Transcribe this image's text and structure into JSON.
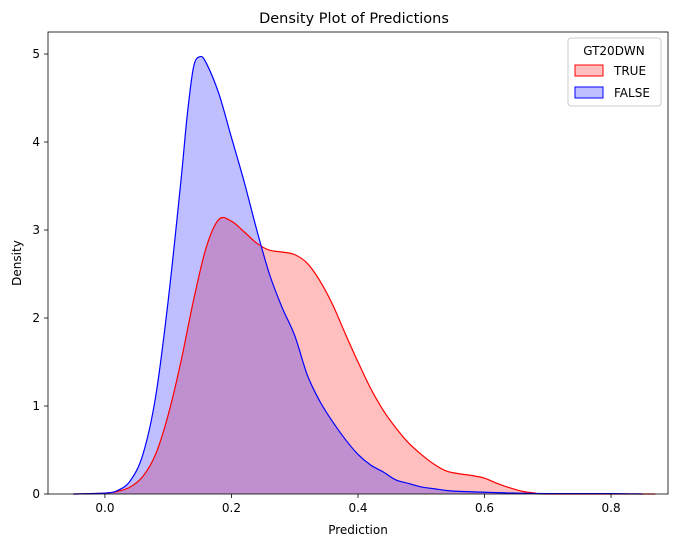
{
  "chart_data": {
    "type": "area",
    "title": "Density Plot of Predictions",
    "xlabel": "Prediction",
    "ylabel": "Density",
    "xlim": [
      -0.09,
      0.89
    ],
    "ylim": [
      0,
      5.25
    ],
    "xticks": [
      0.0,
      0.2,
      0.4,
      0.6,
      0.8
    ],
    "xtick_labels": [
      "0.0",
      "0.2",
      "0.4",
      "0.6",
      "0.8"
    ],
    "yticks": [
      0,
      1,
      2,
      3,
      4,
      5
    ],
    "ytick_labels": [
      "0",
      "1",
      "2",
      "3",
      "4",
      "5"
    ],
    "grid": false,
    "legend": {
      "title": "GT20DWN",
      "placement": "top-right",
      "entries": [
        "TRUE",
        "FALSE"
      ]
    },
    "series": [
      {
        "name": "TRUE",
        "color": "#ff0000",
        "fill": "#ffbfbf",
        "points": [
          [
            -0.05,
            0.0
          ],
          [
            0.0,
            0.01
          ],
          [
            0.02,
            0.03
          ],
          [
            0.04,
            0.08
          ],
          [
            0.06,
            0.2
          ],
          [
            0.08,
            0.45
          ],
          [
            0.1,
            0.9
          ],
          [
            0.12,
            1.5
          ],
          [
            0.14,
            2.2
          ],
          [
            0.16,
            2.8
          ],
          [
            0.18,
            3.12
          ],
          [
            0.2,
            3.1
          ],
          [
            0.22,
            2.98
          ],
          [
            0.24,
            2.85
          ],
          [
            0.26,
            2.77
          ],
          [
            0.28,
            2.75
          ],
          [
            0.3,
            2.72
          ],
          [
            0.32,
            2.62
          ],
          [
            0.34,
            2.42
          ],
          [
            0.36,
            2.15
          ],
          [
            0.38,
            1.82
          ],
          [
            0.4,
            1.5
          ],
          [
            0.42,
            1.2
          ],
          [
            0.44,
            0.95
          ],
          [
            0.46,
            0.75
          ],
          [
            0.48,
            0.58
          ],
          [
            0.5,
            0.45
          ],
          [
            0.52,
            0.34
          ],
          [
            0.54,
            0.26
          ],
          [
            0.56,
            0.23
          ],
          [
            0.58,
            0.21
          ],
          [
            0.6,
            0.18
          ],
          [
            0.62,
            0.12
          ],
          [
            0.64,
            0.07
          ],
          [
            0.66,
            0.03
          ],
          [
            0.68,
            0.01
          ],
          [
            0.7,
            0.0
          ],
          [
            0.87,
            0.0
          ]
        ]
      },
      {
        "name": "FALSE",
        "color": "#0000ff",
        "fill": "#bfbfff",
        "points": [
          [
            -0.05,
            0.0
          ],
          [
            0.0,
            0.01
          ],
          [
            0.02,
            0.04
          ],
          [
            0.04,
            0.15
          ],
          [
            0.06,
            0.45
          ],
          [
            0.08,
            1.1
          ],
          [
            0.1,
            2.2
          ],
          [
            0.12,
            3.55
          ],
          [
            0.13,
            4.3
          ],
          [
            0.14,
            4.85
          ],
          [
            0.15,
            4.97
          ],
          [
            0.16,
            4.9
          ],
          [
            0.18,
            4.55
          ],
          [
            0.2,
            4.05
          ],
          [
            0.22,
            3.55
          ],
          [
            0.24,
            3.0
          ],
          [
            0.26,
            2.5
          ],
          [
            0.28,
            2.12
          ],
          [
            0.3,
            1.8
          ],
          [
            0.32,
            1.35
          ],
          [
            0.34,
            1.05
          ],
          [
            0.36,
            0.82
          ],
          [
            0.38,
            0.62
          ],
          [
            0.4,
            0.45
          ],
          [
            0.42,
            0.33
          ],
          [
            0.44,
            0.25
          ],
          [
            0.46,
            0.16
          ],
          [
            0.48,
            0.12
          ],
          [
            0.5,
            0.08
          ],
          [
            0.52,
            0.06
          ],
          [
            0.54,
            0.04
          ],
          [
            0.56,
            0.03
          ],
          [
            0.6,
            0.02
          ],
          [
            0.65,
            0.01
          ],
          [
            0.7,
            0.005
          ],
          [
            0.8,
            0.005
          ],
          [
            0.85,
            0.0
          ]
        ]
      }
    ]
  }
}
